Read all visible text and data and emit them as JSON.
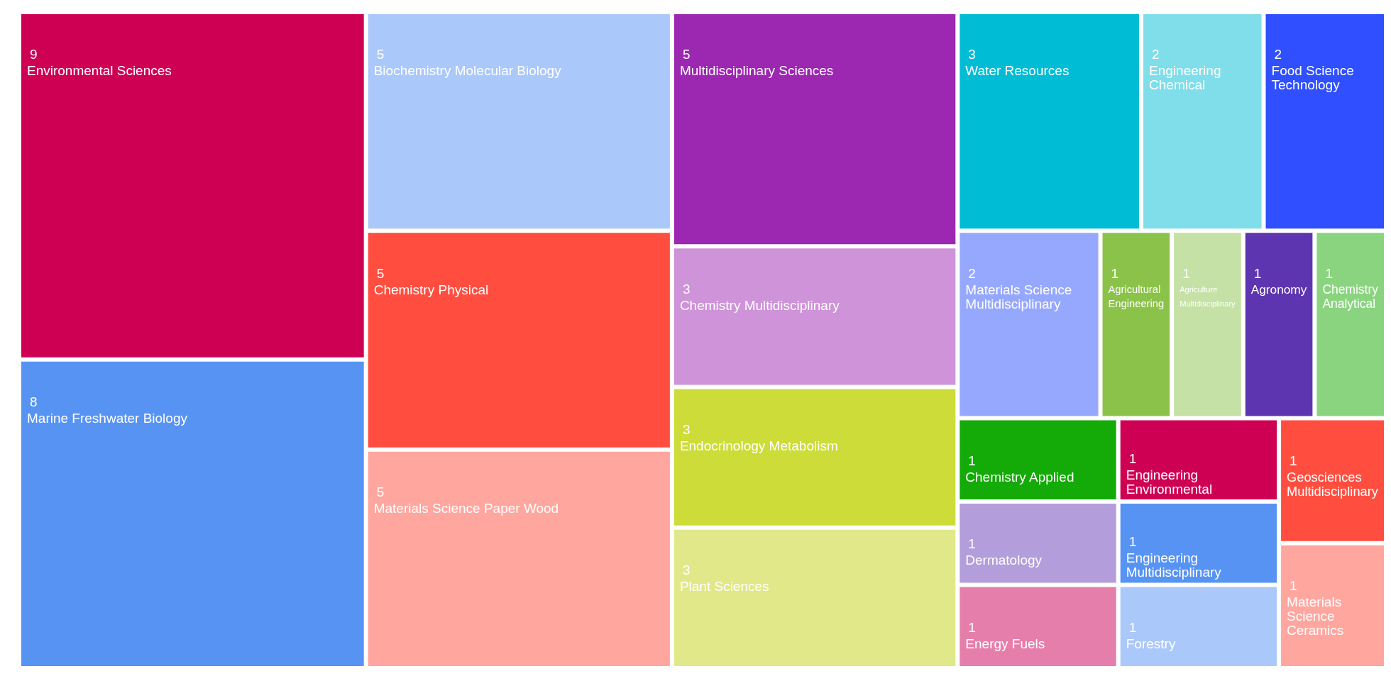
{
  "chart_data": {
    "type": "other",
    "categories": [
      "Environmental Sciences",
      "Marine Freshwater Biology",
      "Biochemistry Molecular Biology",
      "Chemistry Physical",
      "Materials Science Paper Wood",
      "Multidisciplinary Sciences",
      "Chemistry Multidisciplinary",
      "Endocrinology Metabolism",
      "Plant Sciences",
      "Water Resources",
      "Engineering Chemical",
      "Food Science Technology",
      "Materials Science Multidisciplinary",
      "Agricultural Engineering",
      "Agriculture Multidisciplinary",
      "Agronomy",
      "Chemistry Analytical",
      "Chemistry Applied",
      "Dermatology",
      "Energy Fuels",
      "Engineering Environmental",
      "Engineering Multidisciplinary",
      "Forestry",
      "Geosciences Multidisciplinary",
      "Materials Science Ceramics"
    ],
    "values": [
      9,
      8,
      5,
      5,
      5,
      5,
      3,
      3,
      3,
      3,
      2,
      2,
      2,
      1,
      1,
      1,
      1,
      1,
      1,
      1,
      1,
      1,
      1,
      1,
      1
    ],
    "colors": [
      "#ce0054",
      "#5793f3",
      "#aac8f9",
      "#ff4e40",
      "#ffa69f",
      "#9c27b0",
      "#ce93d8",
      "#cddc39",
      "#e1e88a",
      "#00bcd4",
      "#80deea",
      "#304ffe",
      "#96a8fe",
      "#8bc34a",
      "#c5e1a5",
      "#5e35b1",
      "#8ad480",
      "#14aa08",
      "#b39ddb",
      "#e67eab",
      "#ce0054",
      "#5793f3",
      "#aac8f9",
      "#ff4e40",
      "#ffa69f"
    ],
    "data_labels": true
  }
}
